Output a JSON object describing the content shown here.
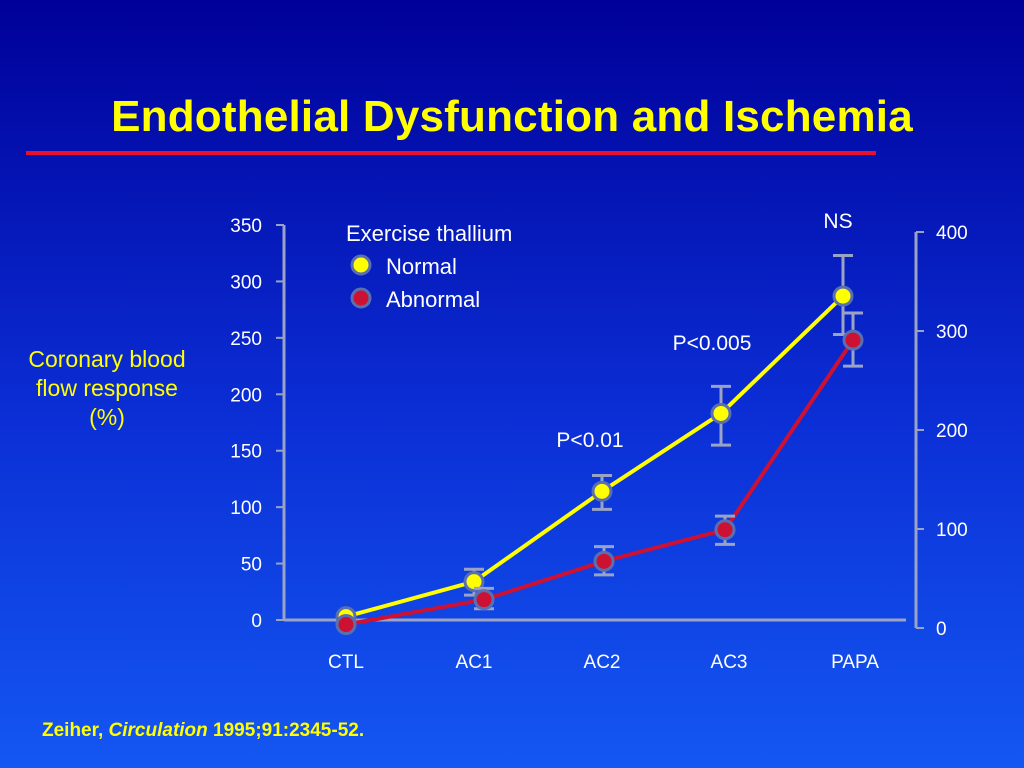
{
  "slide": {
    "title": "Endothelial Dysfunction and Ischemia",
    "citation_author": "Zeiher,",
    "citation_journal": "Circulation",
    "citation_ref": "1995;91:2345-52."
  },
  "colors": {
    "background_top": "#000099",
    "background_bottom": "#1457f2",
    "title_text": "#ffff00",
    "rule": "#e8112d",
    "axis_text": "#ffffff",
    "normal_series": "#ffff00",
    "abnormal_series": "#cc1133",
    "error_bars": "#9aa3c4"
  },
  "chart_data": {
    "type": "line",
    "ylabel": "Coronary blood flow response (%)",
    "legend_title": "Exercise thallium",
    "categories": [
      "CTL",
      "AC1",
      "AC2",
      "AC3",
      "PAPA"
    ],
    "y_left": {
      "ylim": [
        0,
        350
      ],
      "ticks": [
        "0",
        "50",
        "100",
        "150",
        "200",
        "250",
        "300",
        "350"
      ]
    },
    "y_right": {
      "ylim": [
        0,
        400
      ],
      "ticks": [
        "0",
        "100",
        "200",
        "300",
        "400"
      ]
    },
    "grid": false,
    "legend_position": "top-left",
    "series": [
      {
        "name": "Normal",
        "color": "#ffff00",
        "values": [
          3,
          34,
          114,
          183,
          287
        ],
        "err_low": [
          null,
          22,
          98,
          155,
          253
        ],
        "err_high": [
          null,
          45,
          128,
          207,
          323
        ]
      },
      {
        "name": "Abnormal",
        "color": "#cc1133",
        "values": [
          -4,
          18,
          52,
          80,
          248
        ],
        "err_low": [
          null,
          10,
          40,
          67,
          225
        ],
        "err_high": [
          null,
          28,
          65,
          92,
          272
        ]
      }
    ],
    "annotations": [
      {
        "text": "NS",
        "category": "PAPA"
      },
      {
        "text": "P<0.005",
        "category": "AC3"
      },
      {
        "text": "P<0.01",
        "category": "AC2"
      }
    ]
  }
}
